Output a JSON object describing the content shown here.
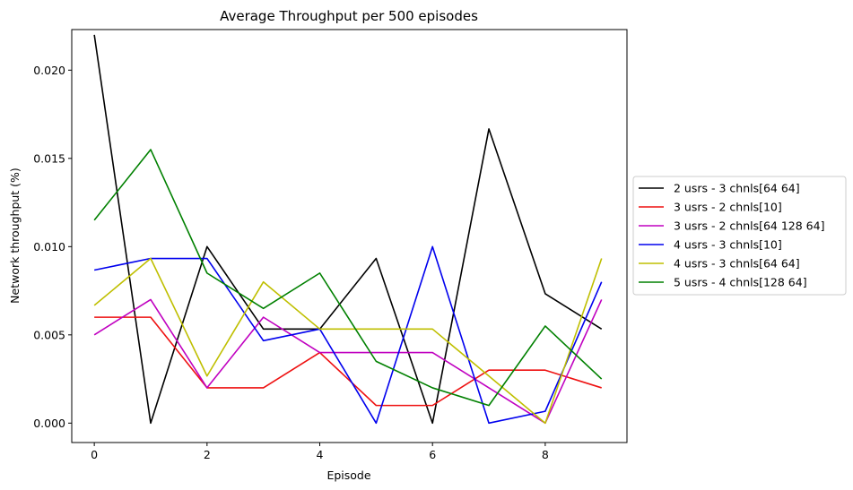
{
  "chart_data": {
    "type": "line",
    "title": "Average Throughput per 500 episodes",
    "xlabel": "Episode",
    "ylabel": "Network throughput (%)",
    "xlim": [
      -0.4,
      9.45
    ],
    "ylim": [
      -0.0011,
      0.0223
    ],
    "x": [
      0,
      1,
      2,
      3,
      4,
      5,
      6,
      7,
      8,
      9
    ],
    "xticks": [
      0,
      2,
      4,
      6,
      8
    ],
    "yticks": [
      0.0,
      0.005,
      0.01,
      0.015,
      0.02
    ],
    "ytick_labels": [
      "0.000",
      "0.005",
      "0.010",
      "0.015",
      "0.020"
    ],
    "grid": false,
    "legend_position": "center-right outside",
    "series": [
      {
        "name": "2 usrs - 3 chnls[64 64]",
        "color": "#000000",
        "values": [
          0.022,
          0.0,
          0.01,
          0.00533,
          0.00533,
          0.00933,
          0.0,
          0.01667,
          0.00733,
          0.00533
        ]
      },
      {
        "name": "3 usrs - 2 chnls[10]",
        "color": "#ee1111",
        "values": [
          0.006,
          0.006,
          0.002,
          0.002,
          0.004,
          0.001,
          0.001,
          0.003,
          0.003,
          0.002
        ]
      },
      {
        "name": "3 usrs - 2 chnls[64 128 64]",
        "color": "#c000c0",
        "values": [
          0.005,
          0.007,
          0.002,
          0.006,
          0.004,
          0.004,
          0.004,
          0.002,
          0.0,
          0.007
        ]
      },
      {
        "name": "4 usrs - 3 chnls[10]",
        "color": "#0000ee",
        "values": [
          0.00867,
          0.00933,
          0.00933,
          0.00467,
          0.00533,
          0.0,
          0.01,
          0.0,
          0.00067,
          0.008
        ]
      },
      {
        "name": "4 usrs - 3 chnls[64 64]",
        "color": "#bfbf00",
        "values": [
          0.00667,
          0.00933,
          0.00267,
          0.008,
          0.00533,
          0.00533,
          0.00533,
          0.00267,
          0.0,
          0.00933
        ]
      },
      {
        "name": "5 usrs - 4 chnls[128 64]",
        "color": "#008000",
        "values": [
          0.0115,
          0.0155,
          0.0085,
          0.0065,
          0.0085,
          0.0035,
          0.002,
          0.001,
          0.0055,
          0.0025
        ]
      }
    ]
  }
}
